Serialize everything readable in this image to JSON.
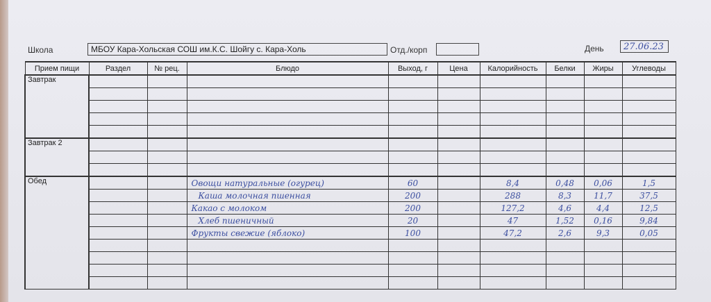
{
  "header": {
    "school_label": "Школа",
    "school_value": "МБОУ Кара-Хольская СОШ им.К.С. Шойгу с. Кара-Холь",
    "dept_label": "Отд./корп",
    "dept_value": "",
    "day_label": "День",
    "day_value": "27.06.23"
  },
  "columns": [
    "Прием пищи",
    "Раздел",
    "№ рец.",
    "Блюдо",
    "Выход, г",
    "Цена",
    "Калорийность",
    "Белки",
    "Жиры",
    "Углеводы"
  ],
  "sections": [
    {
      "name": "Завтрак",
      "rows": []
    },
    {
      "name": "Завтрак 2",
      "rows": []
    },
    {
      "name": "Обед",
      "rows": [
        {
          "dish": "Овощи натуральные (огурец)",
          "yield": "60",
          "kcal": "8,4",
          "protein": "0,48",
          "fat": "0,06",
          "carbs": "1,5"
        },
        {
          "dish": "Каша молочная пшенная",
          "yield": "200",
          "kcal": "288",
          "protein": "8,3",
          "fat": "11,7",
          "carbs": "37,5"
        },
        {
          "dish": "Какао с молоком",
          "yield": "200",
          "kcal": "127,2",
          "protein": "4,6",
          "fat": "4,4",
          "carbs": "12,5"
        },
        {
          "dish": "Хлеб пшеничный",
          "yield": "20",
          "kcal": "47",
          "protein": "1,52",
          "fat": "0,16",
          "carbs": "9,84"
        },
        {
          "dish": "Фрукты свежие (яблоко)",
          "yield": "100",
          "kcal": "47,2",
          "protein": "2,6",
          "fat": "9,3",
          "carbs": "0,05"
        }
      ]
    }
  ]
}
